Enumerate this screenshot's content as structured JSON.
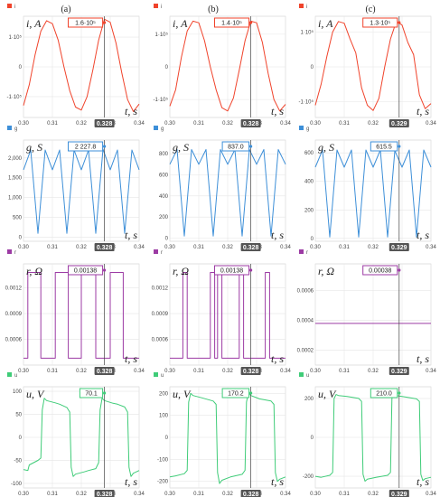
{
  "panel_letters": [
    "(a)",
    "(b)",
    "(c)"
  ],
  "x_unit_label": "t, s",
  "x_ticks": [
    "0.30",
    "0.31",
    "0.32",
    "0.33",
    "0.34"
  ],
  "colors": {
    "i": "#f0432b",
    "g": "#3d8fd8",
    "r": "#9c3ba4",
    "u": "#3fcc78",
    "cursor_badge_bg": "#555555",
    "grid": "#e6e6e6"
  },
  "rows": [
    {
      "key": "i",
      "legend": "i",
      "symbol": "i, A",
      "panels": [
        {
          "y_ticks": [
            {
              "v": 1,
              "t": "1·10⁵"
            },
            {
              "v": 0,
              "t": "0"
            },
            {
              "v": -1,
              "t": "-1·10⁵"
            }
          ],
          "ylim": [
            -1.7,
            1.7
          ],
          "cursor_value": "1.6·10⁵",
          "cursor_time": "0.328"
        },
        {
          "y_ticks": [
            {
              "v": 1,
              "t": "1·10⁵"
            },
            {
              "v": 0,
              "t": "0"
            },
            {
              "v": -1,
              "t": "-1·10⁵"
            }
          ],
          "ylim": [
            -1.55,
            1.55
          ],
          "cursor_value": "1.4·10⁵",
          "cursor_time": "0.328"
        },
        {
          "y_ticks": [
            {
              "v": 1,
              "t": "1·10⁵"
            },
            {
              "v": 0,
              "t": "0"
            },
            {
              "v": -1,
              "t": "-1·10⁵"
            }
          ],
          "ylim": [
            -1.45,
            1.45
          ],
          "cursor_value": "1.3·10⁵",
          "cursor_time": "0.329"
        }
      ]
    },
    {
      "key": "g",
      "legend": "g",
      "symbol": "g, S",
      "panels": [
        {
          "y_ticks": [
            {
              "v": 2000,
              "t": "2,000"
            },
            {
              "v": 1500,
              "t": "1,500"
            },
            {
              "v": 1000,
              "t": "1,000"
            },
            {
              "v": 500,
              "t": "500"
            },
            {
              "v": 0,
              "t": "0"
            }
          ],
          "ylim": [
            -100,
            2450
          ],
          "cursor_value": "2 227.8",
          "cursor_time": "0.328"
        },
        {
          "y_ticks": [
            {
              "v": 800,
              "t": "800"
            },
            {
              "v": 600,
              "t": "600"
            },
            {
              "v": 400,
              "t": "400"
            },
            {
              "v": 200,
              "t": "200"
            },
            {
              "v": 0,
              "t": "0"
            }
          ],
          "ylim": [
            -30,
            930
          ],
          "cursor_value": "837.0",
          "cursor_time": "0.328"
        },
        {
          "y_ticks": [
            {
              "v": 600,
              "t": "600"
            },
            {
              "v": 400,
              "t": "400"
            },
            {
              "v": 200,
              "t": "200"
            },
            {
              "v": 0,
              "t": "0"
            }
          ],
          "ylim": [
            -20,
            690
          ],
          "cursor_value": "615.5",
          "cursor_time": "0.329"
        }
      ]
    },
    {
      "key": "r",
      "legend": "r",
      "symbol": "r, Ω",
      "panels": [
        {
          "y_ticks": [
            {
              "v": 0.0012,
              "t": "0.0012"
            },
            {
              "v": 0.0009,
              "t": "0.0009"
            },
            {
              "v": 0.0006,
              "t": "0.0006"
            }
          ],
          "ylim": [
            0.0003,
            0.00148
          ],
          "cursor_value": "0.00138",
          "cursor_time": "0.328"
        },
        {
          "y_ticks": [
            {
              "v": 0.0012,
              "t": "0.0012"
            },
            {
              "v": 0.0009,
              "t": "0.0009"
            },
            {
              "v": 0.0006,
              "t": "0.0006"
            }
          ],
          "ylim": [
            0.0003,
            0.00148
          ],
          "cursor_value": "0.00138",
          "cursor_time": "0.328"
        },
        {
          "y_ticks": [
            {
              "v": 0.0006,
              "t": "0.0006"
            },
            {
              "v": 0.0004,
              "t": "0.0004"
            },
            {
              "v": 0.0002,
              "t": "0.0002"
            }
          ],
          "ylim": [
            0.0001,
            0.00078
          ],
          "cursor_value": "0.00038",
          "cursor_time": "0.329"
        }
      ]
    },
    {
      "key": "u",
      "legend": "u",
      "symbol": "u, V",
      "panels": [
        {
          "y_ticks": [
            {
              "v": 100,
              "t": "100"
            },
            {
              "v": 50,
              "t": "50"
            },
            {
              "v": 0,
              "t": "0"
            },
            {
              "v": -50,
              "t": "-50"
            },
            {
              "v": -100,
              "t": "-100"
            }
          ],
          "ylim": [
            -110,
            110
          ],
          "cursor_value": "70.1",
          "cursor_time": "0.328"
        },
        {
          "y_ticks": [
            {
              "v": 200,
              "t": "200"
            },
            {
              "v": 100,
              "t": "100"
            },
            {
              "v": 0,
              "t": "0"
            },
            {
              "v": -100,
              "t": "-100"
            },
            {
              "v": -200,
              "t": "-200"
            }
          ],
          "ylim": [
            -230,
            230
          ],
          "cursor_value": "170.2",
          "cursor_time": "0.328"
        },
        {
          "y_ticks": [
            {
              "v": 200,
              "t": "200"
            },
            {
              "v": 0,
              "t": "0"
            },
            {
              "v": -200,
              "t": "-200"
            }
          ],
          "ylim": [
            -260,
            260
          ],
          "cursor_value": "210.0",
          "cursor_time": "0.329"
        }
      ]
    }
  ],
  "chart_data": [
    {
      "type": "line",
      "panel": "(a) i",
      "series": [
        {
          "name": "i",
          "x": [
            0.3,
            0.302,
            0.304,
            0.306,
            0.308,
            0.31,
            0.312,
            0.314,
            0.316,
            0.318,
            0.32,
            0.322,
            0.324,
            0.326,
            0.328,
            0.33,
            0.332,
            0.334,
            0.336,
            0.338,
            0.34
          ],
          "y": [
            -1.3,
            -0.6,
            0.4,
            1.2,
            1.55,
            1.45,
            0.9,
            0.0,
            -0.8,
            -1.35,
            -1.45,
            -1.0,
            -0.1,
            0.9,
            1.6,
            1.5,
            0.8,
            -0.2,
            -1.1,
            -1.5,
            -1.25
          ]
        }
      ],
      "xlim": [
        0.3,
        0.34
      ],
      "cursor": {
        "x": 0.328,
        "value": "1.6·10⁵"
      }
    },
    {
      "type": "line",
      "panel": "(b) i",
      "series": [
        {
          "name": "i",
          "x": [
            0.3,
            0.302,
            0.304,
            0.306,
            0.308,
            0.31,
            0.312,
            0.314,
            0.316,
            0.318,
            0.32,
            0.322,
            0.324,
            0.326,
            0.328,
            0.33,
            0.332,
            0.334,
            0.336,
            0.338,
            0.34
          ],
          "y": [
            -1.2,
            -0.7,
            0.3,
            1.1,
            1.4,
            1.35,
            0.8,
            0.0,
            -0.7,
            -1.25,
            -1.35,
            -0.95,
            -0.1,
            0.8,
            1.4,
            1.35,
            0.75,
            -0.2,
            -1.0,
            -1.35,
            -1.15
          ]
        }
      ],
      "xlim": [
        0.3,
        0.34
      ],
      "cursor": {
        "x": 0.328,
        "value": "1.4·10⁵"
      }
    },
    {
      "type": "line",
      "panel": "(c) i",
      "series": [
        {
          "name": "i",
          "x": [
            0.3,
            0.302,
            0.304,
            0.306,
            0.308,
            0.31,
            0.312,
            0.314,
            0.316,
            0.318,
            0.32,
            0.322,
            0.324,
            0.326,
            0.328,
            0.33,
            0.332,
            0.334,
            0.336,
            0.338,
            0.34
          ],
          "y": [
            -1.1,
            -0.5,
            0.3,
            1.0,
            1.3,
            1.25,
            0.8,
            0.4,
            -0.6,
            -1.1,
            -1.25,
            -0.9,
            0.0,
            0.8,
            1.3,
            1.2,
            0.7,
            0.35,
            -0.8,
            -1.2,
            -1.05
          ]
        }
      ],
      "xlim": [
        0.3,
        0.34
      ],
      "cursor": {
        "x": 0.329,
        "value": "1.3·10⁵"
      }
    },
    {
      "type": "line",
      "panel": "(a) g",
      "series": [
        {
          "name": "g",
          "x": [
            0.3,
            0.3025,
            0.305,
            0.3075,
            0.31,
            0.3125,
            0.315,
            0.3175,
            0.32,
            0.3225,
            0.325,
            0.3275,
            0.33,
            0.3325,
            0.335,
            0.3375,
            0.34
          ],
          "y": [
            1700,
            2200,
            100,
            2200,
            1700,
            2200,
            100,
            2200,
            1700,
            2200,
            100,
            2220,
            1700,
            2200,
            100,
            2200,
            1700
          ]
        }
      ],
      "xlim": [
        0.3,
        0.34
      ],
      "cursor": {
        "x": 0.328,
        "value": "2 227.8"
      }
    },
    {
      "type": "line",
      "panel": "(b) g",
      "series": [
        {
          "name": "g",
          "x": [
            0.3,
            0.3025,
            0.305,
            0.3075,
            0.31,
            0.3125,
            0.315,
            0.3175,
            0.32,
            0.3225,
            0.325,
            0.3275,
            0.33,
            0.3325,
            0.335,
            0.3375,
            0.34
          ],
          "y": [
            700,
            840,
            20,
            840,
            700,
            840,
            20,
            840,
            700,
            840,
            20,
            840,
            700,
            840,
            20,
            840,
            700
          ]
        }
      ],
      "xlim": [
        0.3,
        0.34
      ],
      "cursor": {
        "x": 0.328,
        "value": "837.0"
      }
    },
    {
      "type": "line",
      "panel": "(c) g",
      "series": [
        {
          "name": "g",
          "x": [
            0.3,
            0.3025,
            0.305,
            0.3075,
            0.31,
            0.3125,
            0.315,
            0.3175,
            0.32,
            0.3225,
            0.325,
            0.3275,
            0.33,
            0.3325,
            0.335,
            0.3375,
            0.34
          ],
          "y": [
            500,
            620,
            10,
            620,
            500,
            620,
            10,
            620,
            500,
            620,
            10,
            615,
            500,
            620,
            10,
            620,
            500
          ]
        }
      ],
      "xlim": [
        0.3,
        0.34
      ],
      "cursor": {
        "x": 0.329,
        "value": "615.5"
      }
    },
    {
      "type": "line",
      "panel": "(a) r",
      "series": [
        {
          "name": "r",
          "x": [
            0.3,
            0.3015,
            0.3015,
            0.306,
            0.306,
            0.311,
            0.311,
            0.3155,
            0.3155,
            0.32,
            0.32,
            0.325,
            0.325,
            0.33,
            0.33,
            0.3345,
            0.3345,
            0.34
          ],
          "y": [
            0.00038,
            0.00038,
            0.00138,
            0.00138,
            0.00038,
            0.00038,
            0.00138,
            0.00138,
            0.00038,
            0.00038,
            0.00138,
            0.00138,
            0.00038,
            0.00038,
            0.00138,
            0.00138,
            0.00038,
            0.00038
          ]
        }
      ],
      "xlim": [
        0.3,
        0.34
      ],
      "cursor": {
        "x": 0.328,
        "value": "0.00138"
      }
    },
    {
      "type": "line",
      "panel": "(b) r",
      "series": [
        {
          "name": "r",
          "x": [
            0.3,
            0.3045,
            0.3045,
            0.306,
            0.306,
            0.314,
            0.314,
            0.3155,
            0.3155,
            0.3165,
            0.3165,
            0.318,
            0.318,
            0.324,
            0.324,
            0.3255,
            0.3255,
            0.333,
            0.333,
            0.3345,
            0.3345,
            0.34
          ],
          "y": [
            0.00038,
            0.00038,
            0.00138,
            0.00138,
            0.00038,
            0.00038,
            0.00138,
            0.00138,
            0.00038,
            0.00038,
            0.00138,
            0.00138,
            0.00038,
            0.00038,
            0.00138,
            0.00138,
            0.00038,
            0.00038,
            0.00138,
            0.00138,
            0.00038,
            0.00038
          ]
        }
      ],
      "xlim": [
        0.3,
        0.34
      ],
      "cursor": {
        "x": 0.328,
        "value": "0.00138"
      }
    },
    {
      "type": "line",
      "panel": "(c) r",
      "series": [
        {
          "name": "r",
          "x": [
            0.3,
            0.34
          ],
          "y": [
            0.00038,
            0.00038
          ]
        }
      ],
      "xlim": [
        0.3,
        0.34
      ],
      "cursor": {
        "x": 0.329,
        "value": "0.00038"
      }
    },
    {
      "type": "line",
      "panel": "(a) u",
      "series": [
        {
          "name": "u",
          "x": [
            0.3,
            0.3015,
            0.302,
            0.305,
            0.306,
            0.3065,
            0.3072,
            0.308,
            0.311,
            0.3125,
            0.315,
            0.316,
            0.3165,
            0.3172,
            0.318,
            0.321,
            0.3225,
            0.325,
            0.326,
            0.3265,
            0.3272,
            0.328,
            0.331,
            0.3325,
            0.335,
            0.336,
            0.3365,
            0.3372,
            0.338,
            0.34
          ],
          "y": [
            -70,
            -72,
            -60,
            -50,
            -45,
            60,
            85,
            80,
            75,
            72,
            65,
            55,
            -65,
            -85,
            -80,
            -75,
            -72,
            -68,
            -55,
            60,
            85,
            80,
            74,
            72,
            66,
            55,
            -65,
            -85,
            -78,
            -72
          ]
        }
      ],
      "xlim": [
        0.3,
        0.34
      ],
      "cursor": {
        "x": 0.328,
        "value": "70.1"
      }
    },
    {
      "type": "line",
      "panel": "(b) u",
      "series": [
        {
          "name": "u",
          "x": [
            0.3,
            0.302,
            0.305,
            0.306,
            0.3065,
            0.3072,
            0.308,
            0.311,
            0.315,
            0.316,
            0.3165,
            0.3172,
            0.318,
            0.321,
            0.325,
            0.326,
            0.3265,
            0.3272,
            0.328,
            0.331,
            0.335,
            0.336,
            0.3365,
            0.3372,
            0.338,
            0.34
          ],
          "y": [
            -180,
            -175,
            -165,
            -150,
            160,
            200,
            190,
            180,
            165,
            150,
            -160,
            -210,
            -195,
            -180,
            -168,
            -150,
            160,
            205,
            190,
            175,
            165,
            150,
            -160,
            -200,
            -190,
            -180
          ]
        }
      ],
      "xlim": [
        0.3,
        0.34
      ],
      "cursor": {
        "x": 0.328,
        "value": "170.2"
      }
    },
    {
      "type": "line",
      "panel": "(c) u",
      "series": [
        {
          "name": "u",
          "x": [
            0.3,
            0.302,
            0.305,
            0.306,
            0.3065,
            0.3072,
            0.308,
            0.311,
            0.315,
            0.316,
            0.3165,
            0.3172,
            0.318,
            0.321,
            0.325,
            0.326,
            0.3265,
            0.3272,
            0.328,
            0.331,
            0.335,
            0.336,
            0.3365,
            0.3372,
            0.338,
            0.34
          ],
          "y": [
            -200,
            -205,
            -195,
            -180,
            200,
            220,
            215,
            210,
            200,
            185,
            -190,
            -225,
            -215,
            -205,
            -195,
            -180,
            200,
            222,
            215,
            208,
            198,
            185,
            -190,
            -222,
            -212,
            -205
          ]
        }
      ],
      "xlim": [
        0.3,
        0.34
      ],
      "cursor": {
        "x": 0.329,
        "value": "210.0"
      }
    }
  ]
}
